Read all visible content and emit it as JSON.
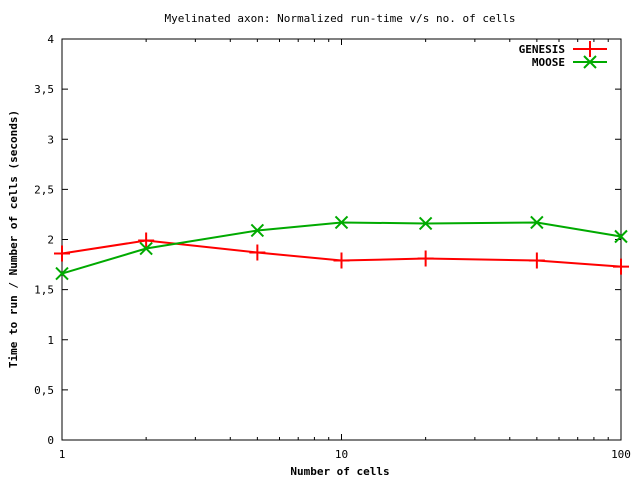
{
  "chart_data": {
    "type": "line",
    "title": "Myelinated axon: Normalized run-time v/s no. of cells",
    "xlabel": "Number of cells",
    "ylabel": "Time to run / Number of cells (seconds)",
    "xscale": "log",
    "xlim": [
      1,
      100
    ],
    "ylim": [
      0,
      4
    ],
    "x_ticks": [
      1,
      10,
      100
    ],
    "x_tick_labels": [
      "1",
      "10",
      "100"
    ],
    "y_ticks": [
      0,
      0.5,
      1,
      1.5,
      2,
      2.5,
      3,
      3.5,
      4
    ],
    "y_tick_labels": [
      "0",
      "0,5",
      "1",
      "1,5",
      "2",
      "2,5",
      "3",
      "3,5",
      "4"
    ],
    "grid": false,
    "legend_position": "top-right",
    "series": [
      {
        "name": "GENESIS",
        "color": "#ff0000",
        "marker": "plus",
        "x": [
          1,
          2,
          5,
          10,
          20,
          50,
          100
        ],
        "y": [
          1.86,
          1.99,
          1.87,
          1.79,
          1.81,
          1.79,
          1.73
        ]
      },
      {
        "name": "MOOSE",
        "color": "#00aa00",
        "marker": "x",
        "x": [
          1,
          2,
          5,
          10,
          20,
          50,
          100
        ],
        "y": [
          1.66,
          1.91,
          2.09,
          2.17,
          2.16,
          2.17,
          2.03
        ]
      }
    ]
  }
}
